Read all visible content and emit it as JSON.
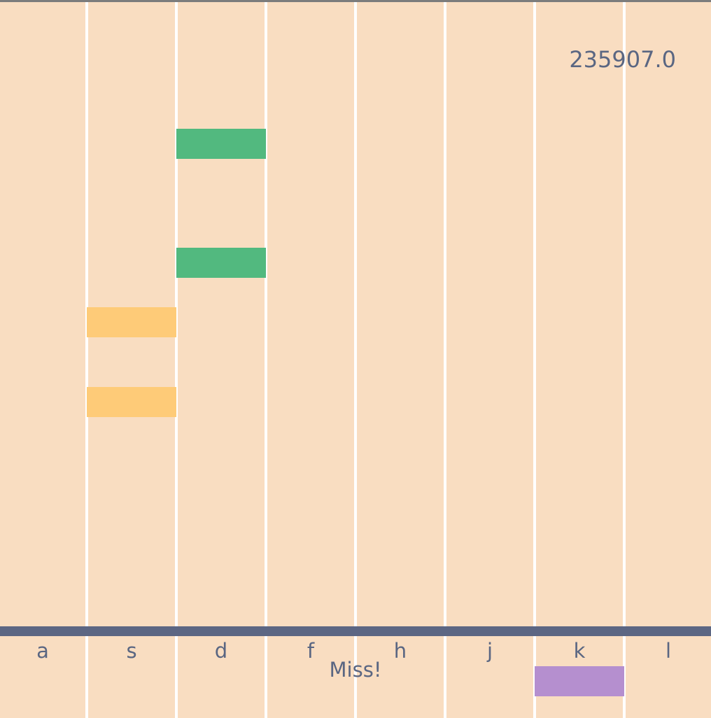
{
  "game": {
    "score": "235907.0",
    "feedback": "Miss!",
    "colors": {
      "background": "#f9ddc1",
      "divider": "#ffffff",
      "hit_line": "#5c6683",
      "text": "#5a6682",
      "note_green": "#52b97f",
      "note_yellow": "#fecb78",
      "note_purple": "#b58fcf"
    },
    "lanes": [
      {
        "key": "a"
      },
      {
        "key": "s"
      },
      {
        "key": "d"
      },
      {
        "key": "f"
      },
      {
        "key": "h"
      },
      {
        "key": "j"
      },
      {
        "key": "k"
      },
      {
        "key": "l"
      }
    ],
    "notes": [
      {
        "lane": 2,
        "color": "#52b97f"
      },
      {
        "lane": 2,
        "color": "#52b97f"
      },
      {
        "lane": 1,
        "color": "#fecb78"
      },
      {
        "lane": 1,
        "color": "#fecb78"
      },
      {
        "lane": 6,
        "color": "#b58fcf"
      }
    ]
  }
}
